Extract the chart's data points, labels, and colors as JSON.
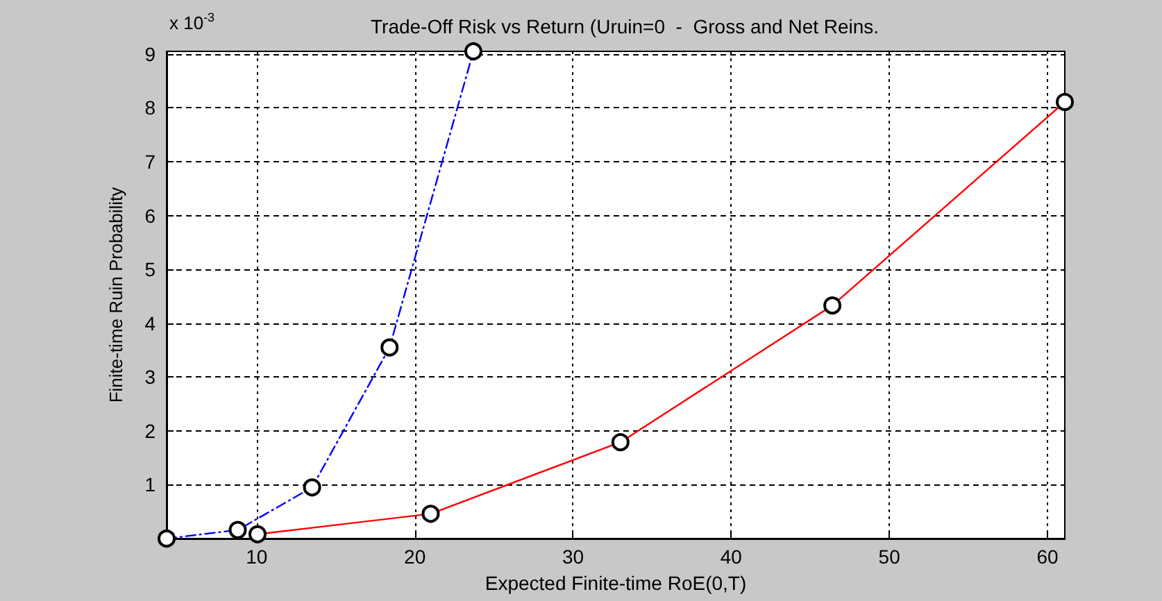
{
  "chart_data": {
    "type": "line",
    "title": "Trade-Off Risk vs Return (Uruin=0  -  Gross and Net Reins.",
    "xlabel": "Expected Finite-time RoE(0,T)",
    "ylabel": "Finite-time Ruin Probability",
    "annotations": [
      "x 10$^{-3}$"
    ],
    "series": [
      {
        "color": "#0000ff",
        "line_style": "dashdot",
        "x": [
          4.3,
          8.8,
          13.5,
          18.4,
          23.7
        ],
        "values": [
          0,
          0.16,
          0.95,
          3.55,
          9.05
        ]
      },
      {
        "color": "#ff0000",
        "line_style": "solid",
        "x": [
          10.05,
          21.0,
          33.0,
          46.4,
          61.1
        ],
        "values": [
          0.08,
          0.46,
          1.79,
          4.33,
          8.11
        ]
      }
    ],
    "xlim": [
      4.3,
      61.1
    ],
    "xticks": [
      10,
      20,
      30,
      40,
      50,
      60
    ],
    "ylim": [
      0,
      9.05
    ],
    "yticks": [
      1,
      2,
      3,
      4,
      5,
      6,
      7,
      8,
      9
    ],
    "grid": true,
    "marker": "circle"
  }
}
